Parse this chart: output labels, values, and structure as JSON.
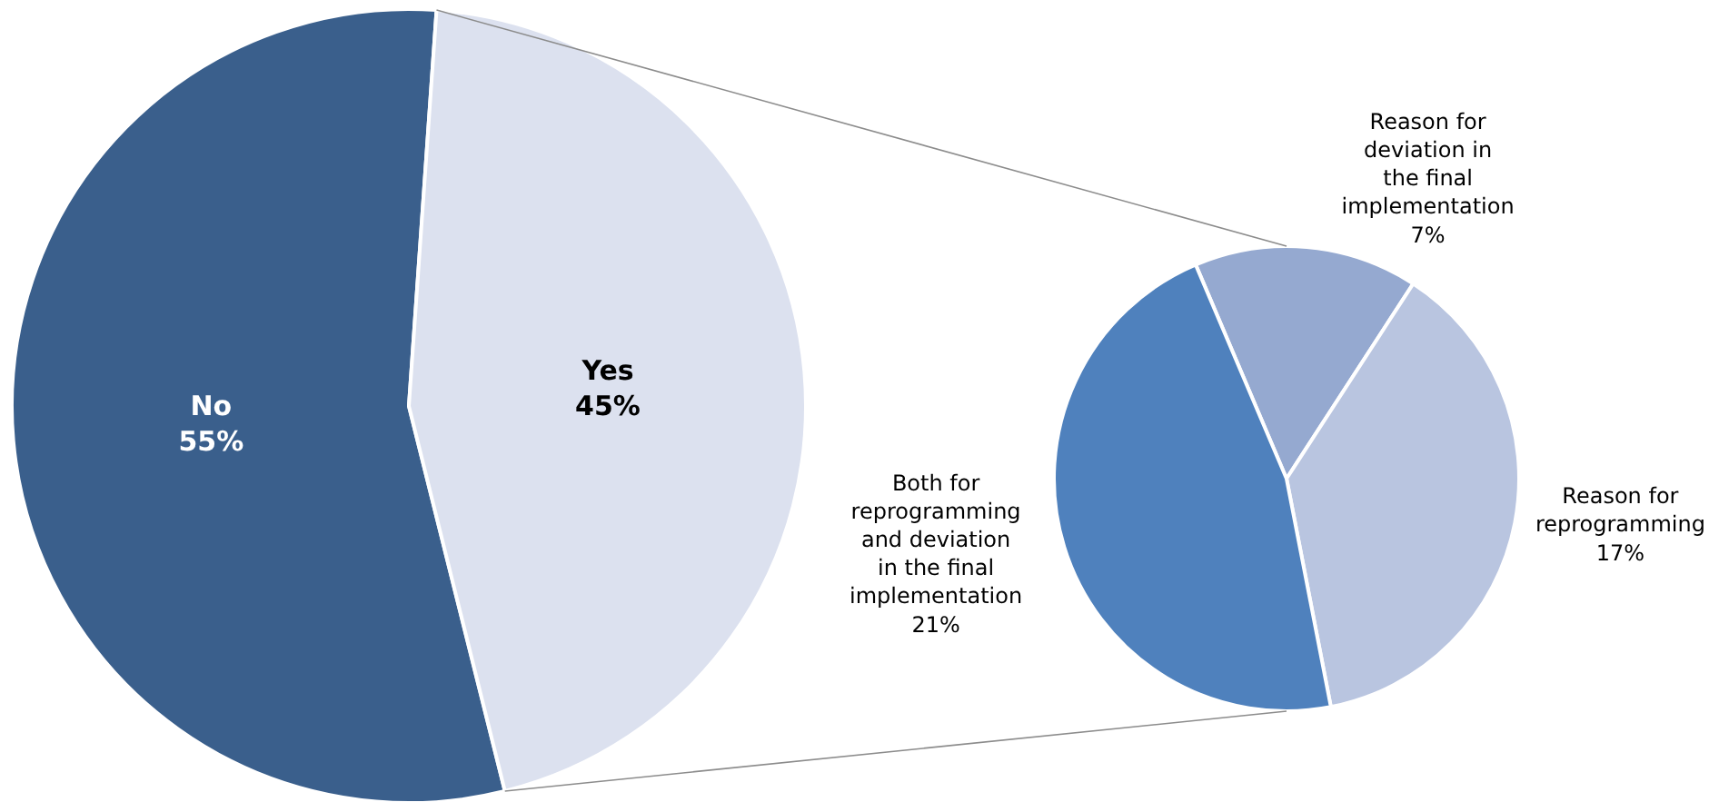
{
  "chart_data": [
    {
      "type": "pie",
      "categories": [
        "No",
        "Yes"
      ],
      "values": [
        55,
        45
      ],
      "colors": [
        "#3a5f8c",
        "#dce1ef"
      ],
      "value_labels": [
        "55%",
        "45%"
      ]
    },
    {
      "type": "pie",
      "categories": [
        "Reason for deviation in the final implementation",
        "Reason for reprogramming",
        "Both for reprogramming and deviation in the final implementation"
      ],
      "values": [
        7,
        17,
        21
      ],
      "colors": [
        "#95a9d0",
        "#b9c5e0",
        "#4f81bd"
      ],
      "value_labels": [
        "7%",
        "17%",
        "21%"
      ]
    }
  ]
}
